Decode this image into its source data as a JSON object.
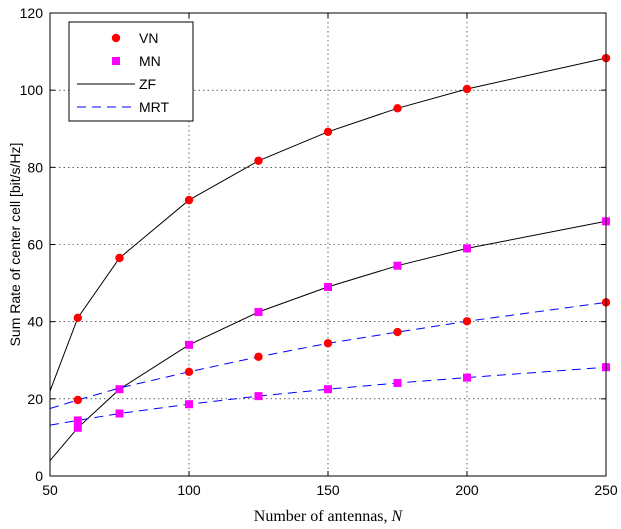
{
  "chart_data": {
    "type": "line",
    "title": "",
    "xlabel": "Number of antennas,",
    "xlabel_var": "N",
    "ylabel": "Sum Rate of center cell [bit/s/Hz]",
    "xlim": [
      50,
      250
    ],
    "ylim": [
      0,
      120
    ],
    "xticks": [
      50,
      100,
      150,
      200,
      250
    ],
    "yticks": [
      0,
      20,
      40,
      60,
      80,
      100,
      120
    ],
    "grid": true,
    "legend_position": "top-left",
    "legend": [
      {
        "label": "VN",
        "kind": "marker-circle",
        "color": "#ff0000"
      },
      {
        "label": "MN",
        "kind": "marker-square",
        "color": "#ff00ff"
      },
      {
        "label": "ZF",
        "kind": "line-solid",
        "color": "#000000"
      },
      {
        "label": "MRT",
        "kind": "line-dashed",
        "color": "#0000ff"
      }
    ],
    "series": [
      {
        "method": "ZF",
        "marker": "VN",
        "line_style": "solid",
        "line_color": "#000000",
        "marker_color": "#ff0000",
        "line_x": [
          50,
          60,
          75,
          100,
          125,
          150,
          175,
          200,
          250
        ],
        "line_y": [
          22,
          41,
          56.5,
          71.5,
          81.7,
          89.2,
          95.3,
          100.3,
          108.3
        ],
        "marker_x": [
          60,
          75,
          100,
          125,
          150,
          175,
          200,
          250
        ],
        "marker_y": [
          41,
          56.5,
          71.5,
          81.7,
          89.2,
          95.3,
          100.3,
          108.3
        ]
      },
      {
        "method": "ZF",
        "marker": "MN",
        "line_style": "solid",
        "line_color": "#000000",
        "marker_color": "#ff00ff",
        "line_x": [
          50,
          60,
          75,
          100,
          125,
          150,
          175,
          200,
          250
        ],
        "line_y": [
          4,
          12.5,
          22.5,
          34,
          42.5,
          49,
          54.5,
          59,
          66
        ],
        "marker_x": [
          60,
          75,
          100,
          125,
          150,
          175,
          200,
          250
        ],
        "marker_y": [
          12.5,
          22.5,
          34,
          42.5,
          49,
          54.5,
          59,
          66
        ]
      },
      {
        "method": "MRT",
        "marker": "VN",
        "line_style": "dashed",
        "line_color": "#0000ff",
        "marker_color": "#ff0000",
        "line_x": [
          50,
          60,
          75,
          100,
          125,
          150,
          175,
          200,
          250
        ],
        "line_y": [
          17.5,
          19.7,
          22.8,
          27,
          30.9,
          34.4,
          37.3,
          40.1,
          45
        ],
        "marker_x": [
          60,
          100,
          125,
          150,
          175,
          200,
          250
        ],
        "marker_y": [
          19.7,
          27,
          30.9,
          34.4,
          37.3,
          40.1,
          45
        ]
      },
      {
        "method": "MRT",
        "marker": "MN",
        "line_style": "dashed",
        "line_color": "#0000ff",
        "marker_color": "#ff00ff",
        "line_x": [
          50,
          60,
          75,
          100,
          125,
          150,
          175,
          200,
          250
        ],
        "line_y": [
          13.2,
          14.4,
          16.2,
          18.6,
          20.7,
          22.5,
          24.1,
          25.5,
          28.2
        ],
        "marker_x": [
          60,
          75,
          100,
          125,
          150,
          175,
          200,
          250
        ],
        "marker_y": [
          14.4,
          16.2,
          18.6,
          20.7,
          22.5,
          24.1,
          25.5,
          28.2
        ]
      }
    ]
  }
}
